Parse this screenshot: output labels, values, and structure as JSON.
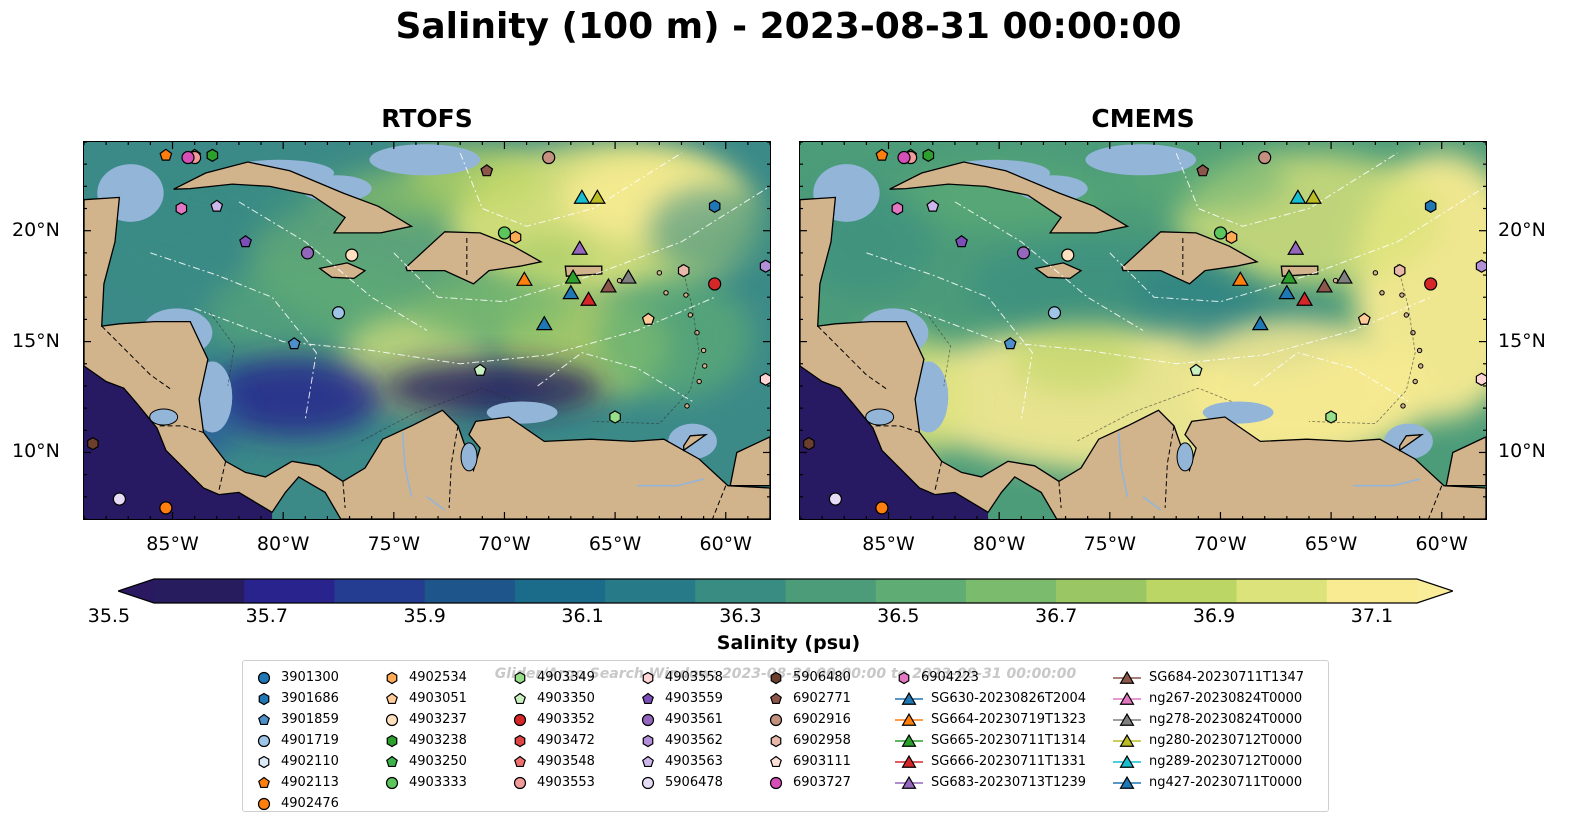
{
  "title": "Salinity (100 m) - 2023-08-31 00:00:00",
  "panels": [
    {
      "id": "rtofs",
      "title": "RTOFS"
    },
    {
      "id": "cmems",
      "title": "CMEMS"
    }
  ],
  "axes": {
    "x_ticks": [
      "85°W",
      "80°W",
      "75°W",
      "70°W",
      "65°W",
      "60°W"
    ],
    "y_ticks": [
      "20°N",
      "15°N",
      "10°N"
    ]
  },
  "colorbar": {
    "label": "Salinity (psu)",
    "ticks": [
      "35.5",
      "35.7",
      "35.9",
      "36.1",
      "36.3",
      "36.5",
      "36.7",
      "36.9",
      "37.1"
    ],
    "colors": [
      "#261c5e",
      "#28238d",
      "#253d90",
      "#1e568c",
      "#1b6b8a",
      "#277b88",
      "#388c82",
      "#4c9c7a",
      "#5fad74",
      "#7bbb6d",
      "#9ac764",
      "#bcd665",
      "#dce37a",
      "#f8eb92"
    ],
    "extend_low": "#2a1960",
    "extend_high": "#f9ed9a"
  },
  "legend": {
    "title": "Glider/Argo Search Window: 2023-08-24 00:00:00 to 2023-08-31 00:00:00",
    "entries": [
      {
        "label": "3901300",
        "marker": "circle",
        "color": "#1f77b4"
      },
      {
        "label": "3901686",
        "marker": "hexagon",
        "color": "#1f77b4"
      },
      {
        "label": "3901859",
        "marker": "pentagon",
        "color": "#4c8fc9"
      },
      {
        "label": "4901719",
        "marker": "circle",
        "color": "#9ec5e8"
      },
      {
        "label": "4902110",
        "marker": "hexagon",
        "color": "#dbeaf9"
      },
      {
        "label": "4902113",
        "marker": "pentagon",
        "color": "#ff7f0e"
      },
      {
        "label": "4902476",
        "marker": "circle",
        "color": "#ff7f0e"
      },
      {
        "label": "4902534",
        "marker": "hexagon",
        "color": "#ffaa55"
      },
      {
        "label": "4903051",
        "marker": "pentagon",
        "color": "#ffcc99"
      },
      {
        "label": "4903237",
        "marker": "circle",
        "color": "#ffe0bf"
      },
      {
        "label": "4903238",
        "marker": "hexagon",
        "color": "#2ca02c"
      },
      {
        "label": "4903250",
        "marker": "pentagon",
        "color": "#3cb44b"
      },
      {
        "label": "4903333",
        "marker": "circle",
        "color": "#5cc65c"
      },
      {
        "label": "4903349",
        "marker": "hexagon",
        "color": "#98df8a"
      },
      {
        "label": "4903350",
        "marker": "pentagon",
        "color": "#c8f0c0"
      },
      {
        "label": "4903352",
        "marker": "circle",
        "color": "#d62728"
      },
      {
        "label": "4903472",
        "marker": "hexagon",
        "color": "#e04343"
      },
      {
        "label": "4903548",
        "marker": "pentagon",
        "color": "#f07070"
      },
      {
        "label": "4903553",
        "marker": "circle",
        "color": "#f29b9b"
      },
      {
        "label": "4903558",
        "marker": "hexagon",
        "color": "#ffd5d5"
      },
      {
        "label": "4903559",
        "marker": "pentagon",
        "color": "#7b4fb7"
      },
      {
        "label": "4903561",
        "marker": "circle",
        "color": "#9467bd"
      },
      {
        "label": "4903562",
        "marker": "hexagon",
        "color": "#b28fd8"
      },
      {
        "label": "4903563",
        "marker": "pentagon",
        "color": "#cdb6ec"
      },
      {
        "label": "5906478",
        "marker": "circle",
        "color": "#e6dcf5"
      },
      {
        "label": "5906480",
        "marker": "hexagon",
        "color": "#6b3e2e"
      },
      {
        "label": "6902771",
        "marker": "pentagon",
        "color": "#8c564b"
      },
      {
        "label": "6902916",
        "marker": "circle",
        "color": "#c49080"
      },
      {
        "label": "6902958",
        "marker": "hexagon",
        "color": "#e8b8a8"
      },
      {
        "label": "6903111",
        "marker": "pentagon",
        "color": "#fde0d8"
      },
      {
        "label": "6903727",
        "marker": "circle",
        "color": "#d64fb8"
      },
      {
        "label": "6904223",
        "marker": "hexagon",
        "color": "#e377c2"
      },
      {
        "label": "SG630-20230826T2004",
        "marker": "triangle",
        "color": "#1f77b4"
      },
      {
        "label": "SG664-20230719T1323",
        "marker": "triangle",
        "color": "#ff7f0e"
      },
      {
        "label": "SG665-20230711T1314",
        "marker": "triangle",
        "color": "#2ca02c"
      },
      {
        "label": "SG666-20230711T1331",
        "marker": "triangle",
        "color": "#d62728"
      },
      {
        "label": "SG683-20230713T1239",
        "marker": "triangle",
        "color": "#9467bd"
      },
      {
        "label": "SG684-20230711T1347",
        "marker": "triangle",
        "color": "#8c564b"
      },
      {
        "label": "ng267-20230824T0000",
        "marker": "triangle",
        "color": "#e377c2"
      },
      {
        "label": "ng278-20230824T0000",
        "marker": "triangle",
        "color": "#7f7f7f"
      },
      {
        "label": "ng280-20230712T0000",
        "marker": "triangle",
        "color": "#bcbd22"
      },
      {
        "label": "ng289-20230712T0000",
        "marker": "triangle",
        "color": "#17becf"
      },
      {
        "label": "ng427-20230711T0000",
        "marker": "triangle",
        "color": "#1f77b4"
      }
    ]
  },
  "chart_data": {
    "type": "heatmap",
    "title": "Salinity (100 m) - 2023-08-31 00:00:00",
    "subplots": [
      "RTOFS",
      "CMEMS"
    ],
    "x_range": [
      -89,
      -58
    ],
    "y_range": [
      7,
      24
    ],
    "x_ticks": [
      -85,
      -80,
      -75,
      -70,
      -65,
      -60
    ],
    "y_ticks": [
      20,
      15,
      10
    ],
    "colorbar_range": [
      35.5,
      37.1
    ],
    "colorbar_label": "Salinity (psu)",
    "markers": [
      {
        "id": "3901686",
        "lon": -60.5,
        "lat": 21.1
      },
      {
        "id": "3901859",
        "lon": -79.5,
        "lat": 14.9
      },
      {
        "id": "4901719",
        "lon": -77.5,
        "lat": 16.3
      },
      {
        "id": "4902113",
        "lon": -85.3,
        "lat": 23.4
      },
      {
        "id": "4902476",
        "lon": -85.3,
        "lat": 7.5
      },
      {
        "id": "4902534",
        "lon": -69.5,
        "lat": 19.7
      },
      {
        "id": "4903051",
        "lon": -63.5,
        "lat": 16.0
      },
      {
        "id": "4903237",
        "lon": -76.9,
        "lat": 18.9
      },
      {
        "id": "4903238",
        "lon": -83.2,
        "lat": 23.4
      },
      {
        "id": "4903250",
        "lon": -84.0,
        "lat": 23.4
      },
      {
        "id": "4903333",
        "lon": -70.0,
        "lat": 19.9
      },
      {
        "id": "4903349",
        "lon": -65.0,
        "lat": 11.6
      },
      {
        "id": "4903350",
        "lon": -71.1,
        "lat": 13.7
      },
      {
        "id": "4903352",
        "lon": -60.5,
        "lat": 17.6
      },
      {
        "id": "4903553",
        "lon": -84.0,
        "lat": 23.3
      },
      {
        "id": "4903558",
        "lon": -58.2,
        "lat": 13.3
      },
      {
        "id": "4903559",
        "lon": -81.7,
        "lat": 19.5
      },
      {
        "id": "4903561",
        "lon": -78.9,
        "lat": 19.0
      },
      {
        "id": "4903562",
        "lon": -58.2,
        "lat": 18.4
      },
      {
        "id": "4903563",
        "lon": -83.0,
        "lat": 21.1
      },
      {
        "id": "5906478",
        "lon": -87.4,
        "lat": 7.9
      },
      {
        "id": "5906480",
        "lon": -88.6,
        "lat": 10.4
      },
      {
        "id": "6902771",
        "lon": -70.8,
        "lat": 22.7
      },
      {
        "id": "6902916",
        "lon": -68.0,
        "lat": 23.3
      },
      {
        "id": "6902958",
        "lon": -61.9,
        "lat": 18.2
      },
      {
        "id": "6903727",
        "lon": -84.3,
        "lat": 23.3
      },
      {
        "id": "6904223",
        "lon": -84.6,
        "lat": 21.0
      },
      {
        "id": "SG630-20230826T2004",
        "lon": -68.2,
        "lat": 15.8
      },
      {
        "id": "SG664-20230719T1323",
        "lon": -69.1,
        "lat": 17.8
      },
      {
        "id": "SG665-20230711T1314",
        "lon": -66.9,
        "lat": 17.9
      },
      {
        "id": "SG666-20230711T1331",
        "lon": -66.2,
        "lat": 16.9
      },
      {
        "id": "SG683-20230713T1239",
        "lon": -66.6,
        "lat": 19.2
      },
      {
        "id": "SG684-20230711T1347",
        "lon": -65.3,
        "lat": 17.5
      },
      {
        "id": "ng278-20230824T0000",
        "lon": -64.4,
        "lat": 17.9
      },
      {
        "id": "ng280-20230712T0000",
        "lon": -65.8,
        "lat": 21.5
      },
      {
        "id": "ng289-20230712T0000",
        "lon": -66.5,
        "lat": 21.5
      },
      {
        "id": "ng427-20230711T0000",
        "lon": -67.0,
        "lat": 17.2
      }
    ]
  }
}
